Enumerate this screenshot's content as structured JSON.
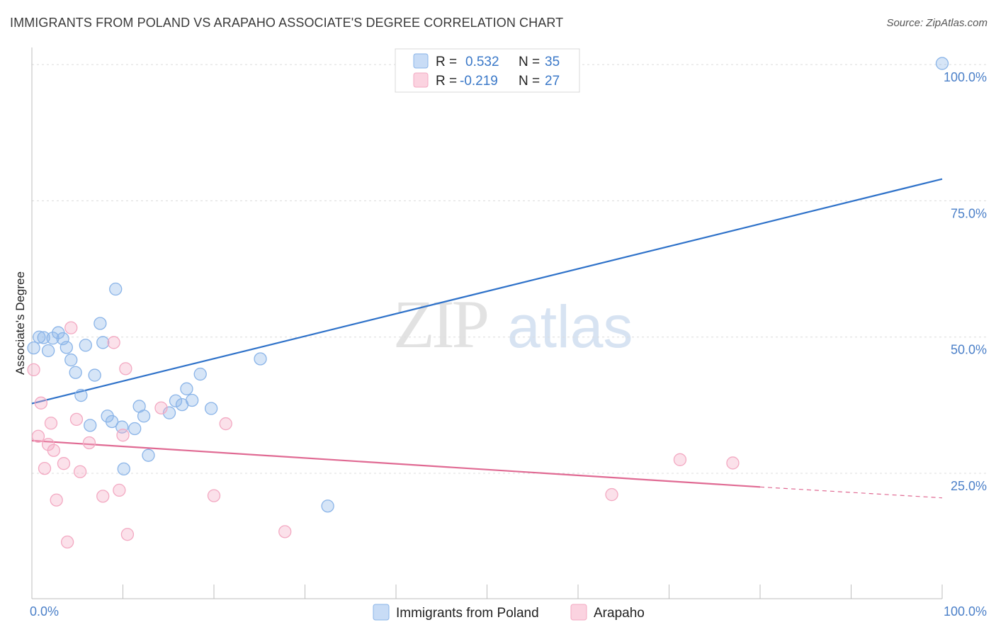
{
  "header": {
    "title": "IMMIGRANTS FROM POLAND VS ARAPAHO ASSOCIATE'S DEGREE CORRELATION CHART",
    "source": "Source: ZipAtlas.com"
  },
  "watermark": {
    "zip": "ZIP",
    "atlas": "atlas"
  },
  "chart_data": {
    "type": "scatter",
    "title": "IMMIGRANTS FROM POLAND VS ARAPAHO ASSOCIATE'S DEGREE CORRELATION CHART",
    "xlabel": "",
    "ylabel": "Associate's Degree",
    "xlim": [
      0,
      100
    ],
    "ylim": [
      2,
      103
    ],
    "x_tick_labels": [
      {
        "value": 0,
        "label": "0.0%"
      },
      {
        "value": 100,
        "label": "100.0%"
      }
    ],
    "y_tick_labels": [
      {
        "value": 25,
        "label": "25.0%"
      },
      {
        "value": 50,
        "label": "50.0%"
      },
      {
        "value": 75,
        "label": "75.0%"
      },
      {
        "value": 100,
        "label": "100.0%"
      }
    ],
    "grid": "horizontal dashed",
    "legend_position": "top-center",
    "series": [
      {
        "name": "Immigrants from Poland",
        "color": "#8ab4e8",
        "line_color": "#2f72c9",
        "R": "0.532",
        "N": "35",
        "r_label": "R =",
        "n_label": "N =",
        "trend": {
          "x0": 0,
          "y0": 37.8,
          "x1": 100,
          "y1": 79
        },
        "points": [
          {
            "x": 0.2,
            "y": 48.0
          },
          {
            "x": 0.8,
            "y": 50.0
          },
          {
            "x": 1.3,
            "y": 49.9
          },
          {
            "x": 1.8,
            "y": 47.5
          },
          {
            "x": 2.3,
            "y": 49.8
          },
          {
            "x": 2.9,
            "y": 50.8
          },
          {
            "x": 3.4,
            "y": 49.7
          },
          {
            "x": 3.8,
            "y": 48.1
          },
          {
            "x": 4.3,
            "y": 45.8
          },
          {
            "x": 4.8,
            "y": 43.5
          },
          {
            "x": 5.4,
            "y": 39.3
          },
          {
            "x": 5.9,
            "y": 48.5
          },
          {
            "x": 6.4,
            "y": 33.8
          },
          {
            "x": 6.9,
            "y": 43.0
          },
          {
            "x": 7.5,
            "y": 52.5
          },
          {
            "x": 7.8,
            "y": 49.0
          },
          {
            "x": 8.3,
            "y": 35.5
          },
          {
            "x": 8.8,
            "y": 34.5
          },
          {
            "x": 9.2,
            "y": 58.8
          },
          {
            "x": 9.9,
            "y": 33.5
          },
          {
            "x": 10.1,
            "y": 25.8
          },
          {
            "x": 11.3,
            "y": 33.2
          },
          {
            "x": 11.8,
            "y": 37.3
          },
          {
            "x": 12.3,
            "y": 35.5
          },
          {
            "x": 12.8,
            "y": 28.3
          },
          {
            "x": 15.1,
            "y": 36.1
          },
          {
            "x": 15.8,
            "y": 38.3
          },
          {
            "x": 16.5,
            "y": 37.6
          },
          {
            "x": 17.0,
            "y": 40.5
          },
          {
            "x": 17.6,
            "y": 38.4
          },
          {
            "x": 18.5,
            "y": 43.2
          },
          {
            "x": 19.7,
            "y": 36.9
          },
          {
            "x": 25.1,
            "y": 46.0
          },
          {
            "x": 32.5,
            "y": 19.0
          },
          {
            "x": 100,
            "y": 100.2
          }
        ]
      },
      {
        "name": "Arapaho",
        "color": "#f3a9c2",
        "line_color": "#e06a93",
        "R": "-0.219",
        "N": "27",
        "r_label": "R =",
        "n_label": "N =",
        "trend": {
          "x0": 0,
          "y0": 31.0,
          "x1": 80,
          "y1": 22.5
        },
        "trend_dashed": {
          "x0": 80,
          "y0": 22.5,
          "x1": 100,
          "y1": 20.5
        },
        "points": [
          {
            "x": 0.2,
            "y": 44.0
          },
          {
            "x": 0.7,
            "y": 31.8
          },
          {
            "x": 1.0,
            "y": 37.9
          },
          {
            "x": 1.4,
            "y": 25.9
          },
          {
            "x": 1.8,
            "y": 30.3
          },
          {
            "x": 2.1,
            "y": 34.2
          },
          {
            "x": 2.4,
            "y": 29.2
          },
          {
            "x": 2.7,
            "y": 20.1
          },
          {
            "x": 3.5,
            "y": 26.8
          },
          {
            "x": 3.9,
            "y": 12.4
          },
          {
            "x": 4.3,
            "y": 51.7
          },
          {
            "x": 4.9,
            "y": 34.9
          },
          {
            "x": 5.3,
            "y": 25.3
          },
          {
            "x": 6.3,
            "y": 30.6
          },
          {
            "x": 7.8,
            "y": 20.8
          },
          {
            "x": 9.0,
            "y": 49.0
          },
          {
            "x": 9.6,
            "y": 21.9
          },
          {
            "x": 10.0,
            "y": 32.0
          },
          {
            "x": 10.3,
            "y": 44.2
          },
          {
            "x": 10.5,
            "y": 13.8
          },
          {
            "x": 14.2,
            "y": 37.0
          },
          {
            "x": 20.0,
            "y": 20.9
          },
          {
            "x": 21.3,
            "y": 34.1
          },
          {
            "x": 27.8,
            "y": 14.3
          },
          {
            "x": 63.7,
            "y": 21.1
          },
          {
            "x": 71.2,
            "y": 27.5
          },
          {
            "x": 77.0,
            "y": 26.9
          }
        ]
      }
    ]
  }
}
